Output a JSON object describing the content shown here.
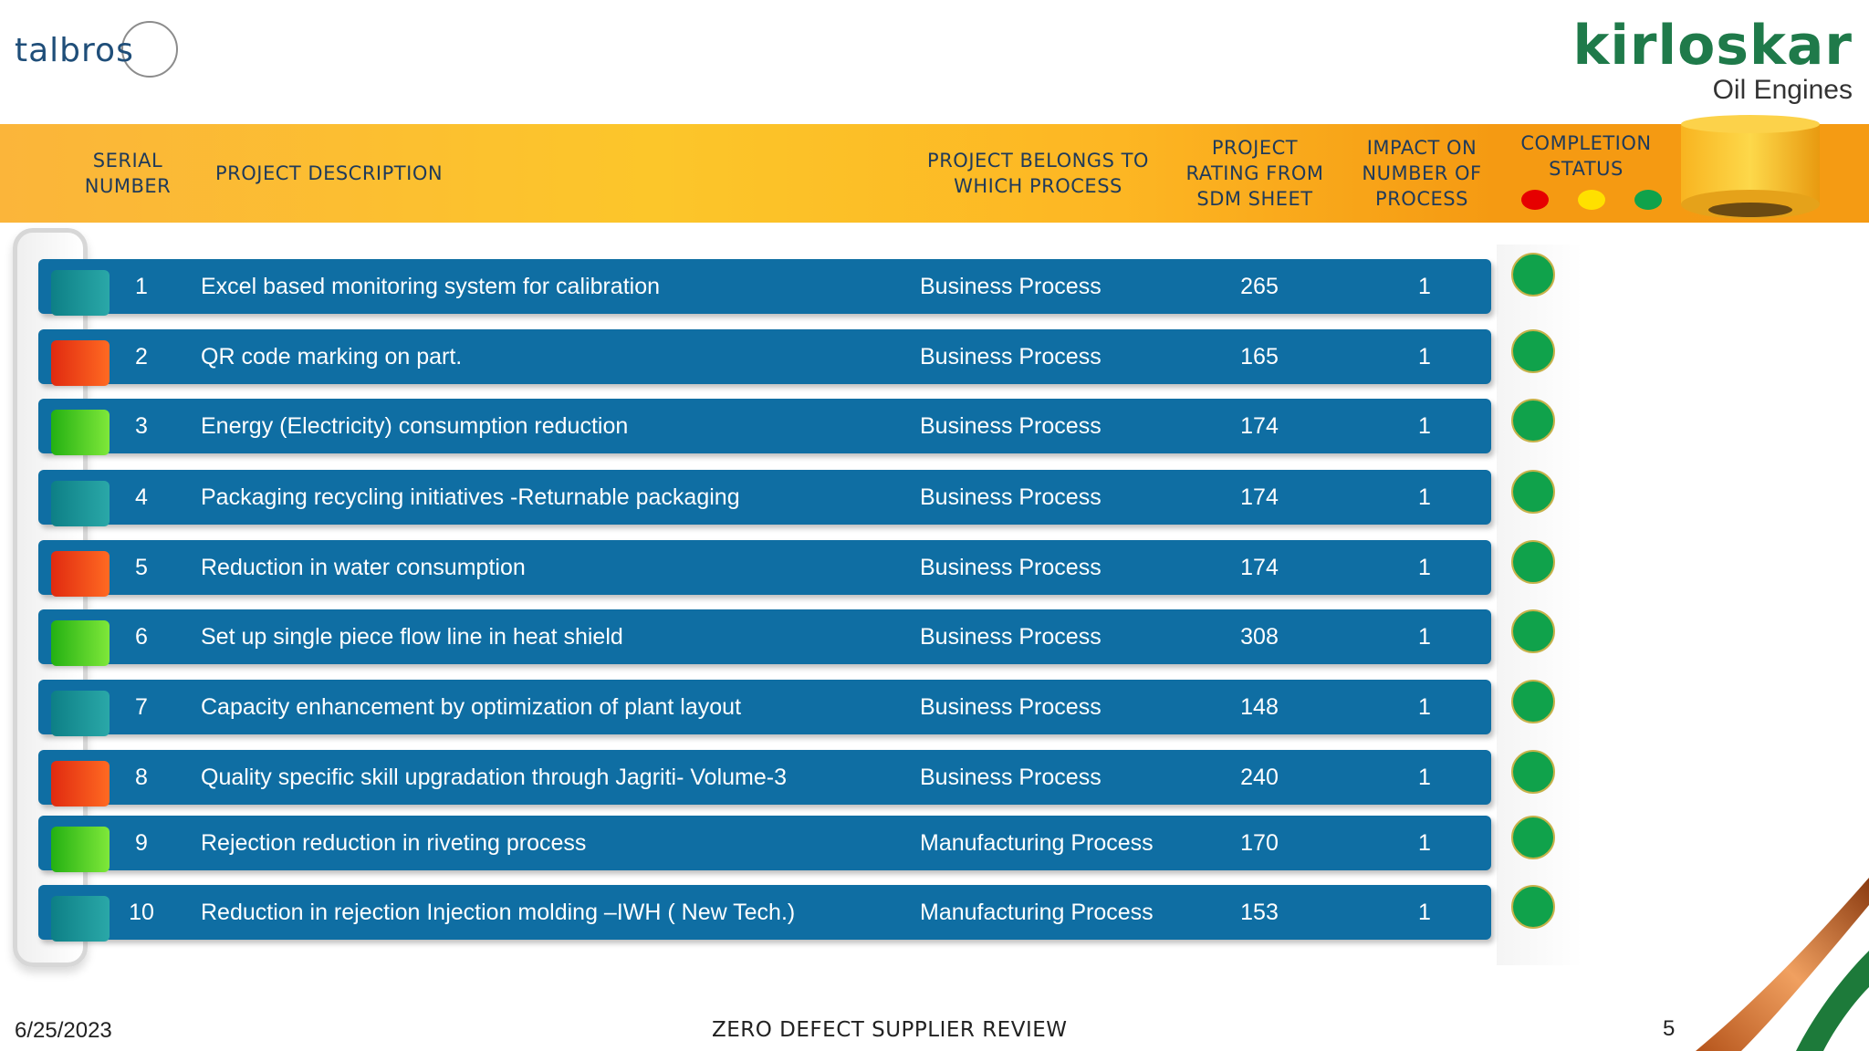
{
  "logos": {
    "left": "talbros",
    "right_main": "kirloskar",
    "right_sub": "Oil Engines"
  },
  "header": {
    "serial": "SERIAL NUMBER",
    "description": "PROJECT DESCRIPTION",
    "process": "PROJECT BELONGS TO WHICH PROCESS",
    "rating": "PROJECT RATING FROM SDM SHEET",
    "impact": "IMPACT ON NUMBER OF PROCESS",
    "status": "COMPLETION STATUS",
    "status_legend_colors": [
      "#e60000",
      "#ffe000",
      "#10a24b"
    ]
  },
  "rows": [
    {
      "sn": "1",
      "desc": "Excel based monitoring system for calibration",
      "process": "Business  Process",
      "rating": "265",
      "impact": "1",
      "tab_color": "teal",
      "status_color": "#10a24b"
    },
    {
      "sn": "2",
      "desc": "QR code marking on part.",
      "process": "Business  Process",
      "rating": "165",
      "impact": "1",
      "tab_color": "red",
      "status_color": "#10a24b"
    },
    {
      "sn": "3",
      "desc": "Energy (Electricity) consumption reduction",
      "process": "Business  Process",
      "rating": "174",
      "impact": "1",
      "tab_color": "green",
      "status_color": "#10a24b"
    },
    {
      "sn": "4",
      "desc": "Packaging recycling initiatives -Returnable packaging",
      "process": "Business  Process",
      "rating": "174",
      "impact": "1",
      "tab_color": "teal",
      "status_color": "#10a24b"
    },
    {
      "sn": "5",
      "desc": "Reduction in water consumption",
      "process": "Business  Process",
      "rating": "174",
      "impact": "1",
      "tab_color": "red",
      "status_color": "#10a24b"
    },
    {
      "sn": "6",
      "desc": "Set up single piece flow line in heat shield",
      "process": "Business  Process",
      "rating": "308",
      "impact": "1",
      "tab_color": "green",
      "status_color": "#10a24b"
    },
    {
      "sn": "7",
      "desc": "Capacity enhancement by optimization of plant layout",
      "process": "Business  Process",
      "rating": "148",
      "impact": "1",
      "tab_color": "teal",
      "status_color": "#10a24b"
    },
    {
      "sn": "8",
      "desc": "Quality specific skill upgradation through Jagriti- Volume-3",
      "process": "Business  Process",
      "rating": "240",
      "impact": "1",
      "tab_color": "red",
      "status_color": "#10a24b"
    },
    {
      "sn": "9",
      "desc": "Rejection reduction in riveting process",
      "process": "Manufacturing Process",
      "rating": "170",
      "impact": "1",
      "tab_color": "green",
      "status_color": "#10a24b"
    },
    {
      "sn": "10",
      "desc": "Reduction in rejection Injection molding –IWH  ( New Tech.)",
      "process": "Manufacturing Process",
      "rating": "153",
      "impact": "1",
      "tab_color": "teal",
      "status_color": "#10a24b"
    }
  ],
  "footer": {
    "date": "6/25/2023",
    "title": "ZERO DEFECT SUPPLIER REVIEW",
    "page": "5"
  }
}
